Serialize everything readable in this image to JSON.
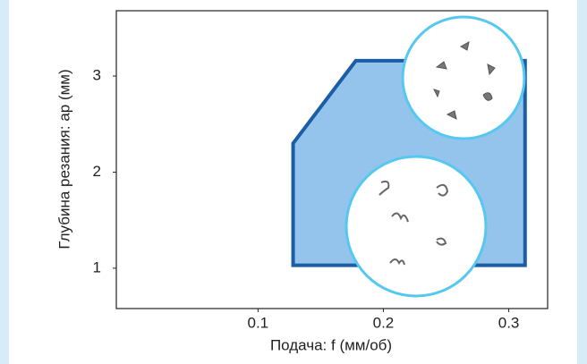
{
  "chart_data": {
    "type": "area",
    "x_label": "Подача: f (мм/об)",
    "y_label": "Глубина резания: ap (мм)",
    "x": [
      0.128,
      0.128,
      0.178,
      0.313,
      0.313
    ],
    "values": [
      1.03,
      2.3,
      3.16,
      3.16,
      1.03
    ],
    "color": "#94c4ec",
    "edge_color": "#1b5ea6",
    "xlim": [
      -0.013,
      0.331
    ],
    "xticks": [
      0.1,
      0.2,
      0.3
    ],
    "ylim": [
      0.58,
      3.68
    ],
    "yticks": [
      1,
      2,
      3
    ]
  }
}
